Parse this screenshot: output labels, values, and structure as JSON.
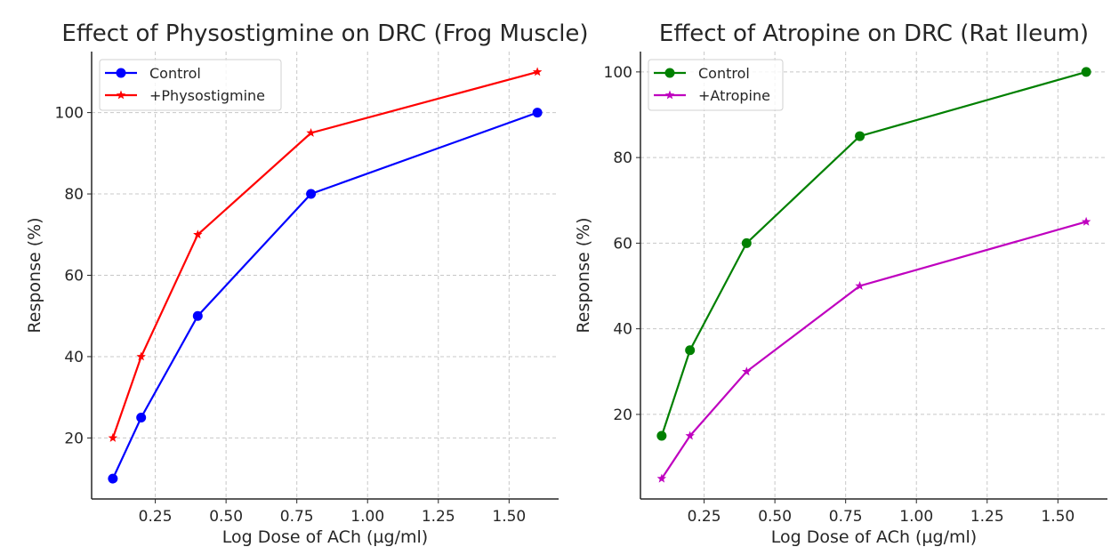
{
  "chart_data": [
    {
      "type": "line",
      "title": "Effect of Physostigmine on DRC (Frog Muscle)",
      "xlabel": "Log Dose of ACh (µg/ml)",
      "ylabel": "Response (%)",
      "x": [
        0.1,
        0.2,
        0.4,
        0.8,
        1.6
      ],
      "xlim": [
        0.025,
        1.675
      ],
      "ylim": [
        5,
        115
      ],
      "xticks": [
        0.25,
        0.5,
        0.75,
        1.0,
        1.25,
        1.5
      ],
      "xtick_labels": [
        "0.25",
        "0.50",
        "0.75",
        "1.00",
        "1.25",
        "1.50"
      ],
      "yticks": [
        20,
        40,
        60,
        80,
        100
      ],
      "ytick_labels": [
        "20",
        "40",
        "60",
        "80",
        "100"
      ],
      "grid": true,
      "legend_position": "top-left",
      "series": [
        {
          "name": "Control",
          "values": [
            10,
            25,
            50,
            80,
            100
          ],
          "color": "#0000ff",
          "marker": "circle"
        },
        {
          "name": "+Physostigmine",
          "values": [
            20,
            40,
            70,
            95,
            110
          ],
          "color": "#ff0000",
          "marker": "star"
        }
      ]
    },
    {
      "type": "line",
      "title": "Effect of Atropine on DRC (Rat Ileum)",
      "xlabel": "Log Dose of ACh (µg/ml)",
      "ylabel": "Response (%)",
      "x": [
        0.1,
        0.2,
        0.4,
        0.8,
        1.6
      ],
      "xlim": [
        0.025,
        1.675
      ],
      "ylim": [
        0.25,
        104.75
      ],
      "xticks": [
        0.25,
        0.5,
        0.75,
        1.0,
        1.25,
        1.5
      ],
      "xtick_labels": [
        "0.25",
        "0.50",
        "0.75",
        "1.00",
        "1.25",
        "1.50"
      ],
      "yticks": [
        20,
        40,
        60,
        80,
        100
      ],
      "ytick_labels": [
        "20",
        "40",
        "60",
        "80",
        "100"
      ],
      "grid": true,
      "legend_position": "top-left",
      "series": [
        {
          "name": "Control",
          "values": [
            15,
            35,
            60,
            85,
            100
          ],
          "color": "#008000",
          "marker": "circle"
        },
        {
          "name": "+Atropine",
          "values": [
            5,
            15,
            30,
            50,
            65
          ],
          "color": "#bf00bf",
          "marker": "star"
        }
      ]
    }
  ]
}
